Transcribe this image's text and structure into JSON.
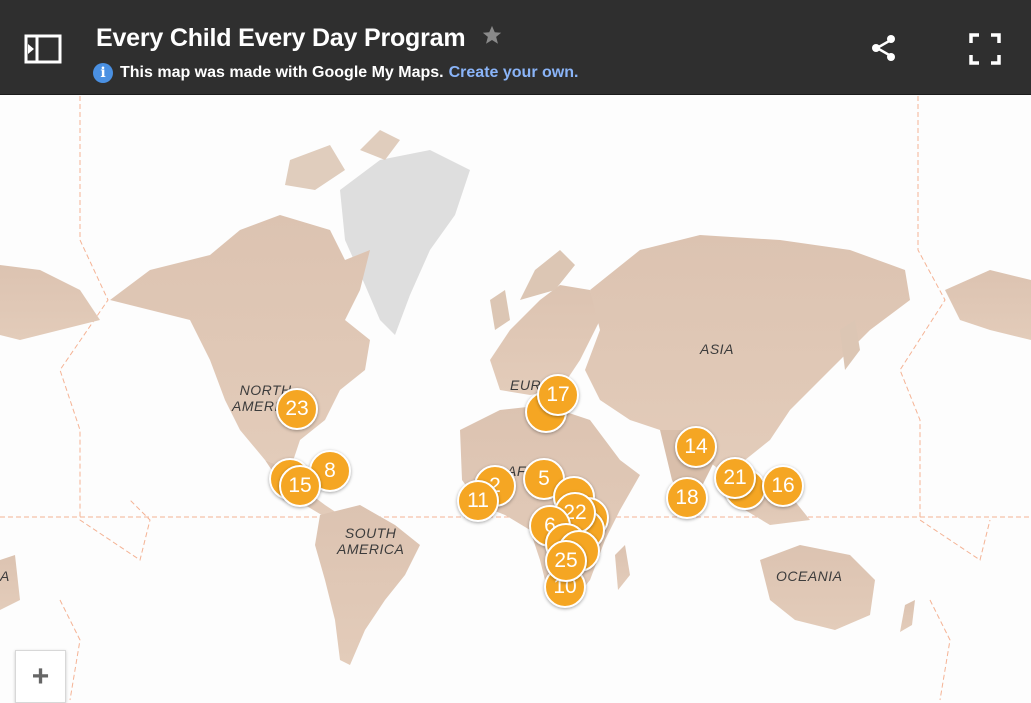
{
  "header": {
    "title": "Every Child Every Day Program",
    "info_text": "This map was made with Google My Maps.",
    "create_link": "Create your own.",
    "icons": {
      "panel": "side-panel-toggle-icon",
      "star": "star-icon",
      "info": "info-icon",
      "share": "share-icon",
      "fullscreen": "fullscreen-icon"
    },
    "colors": {
      "bar": "#2f2f2f",
      "link": "#8ab4f8",
      "info": "#4a90e2"
    }
  },
  "map": {
    "region_labels": {
      "north_america": [
        "NORTH",
        "AMERICA"
      ],
      "south_america": [
        "SOUTH",
        "AMERICA"
      ],
      "europe": "EUROPE",
      "africa": "AFRICA",
      "asia": "ASIA",
      "oceania": "OCEANIA",
      "australia_partial": "A"
    },
    "marker_color": "#f5a623",
    "clusters": [
      {
        "label": "23"
      },
      {
        "label": "8"
      },
      {
        "label": "15"
      },
      {
        "label": "17"
      },
      {
        "label": "14"
      },
      {
        "label": "2"
      },
      {
        "label": "11"
      },
      {
        "label": "5"
      },
      {
        "label": "22"
      },
      {
        "label": "6"
      },
      {
        "label": "25"
      },
      {
        "label": "10"
      },
      {
        "label": "18"
      },
      {
        "label": "21"
      },
      {
        "label": "16"
      }
    ],
    "zoom_in_label": "+"
  }
}
